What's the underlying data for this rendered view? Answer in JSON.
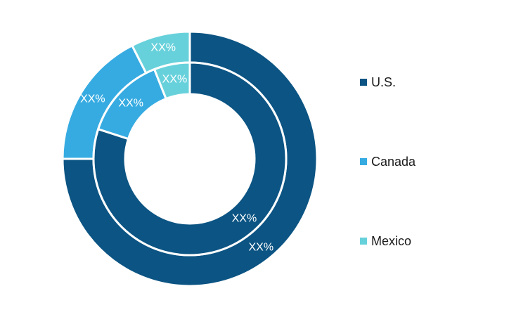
{
  "chart_data": {
    "type": "pie",
    "variant": "nested-donut",
    "categories": [
      "U.S.",
      "Canada",
      "Mexico"
    ],
    "colors": [
      "#0b5483",
      "#36abe1",
      "#67d1db"
    ],
    "series": [
      {
        "ring": "outer",
        "values": [
          75,
          17.5,
          7.5
        ],
        "labels": [
          "XX%",
          "XX%",
          "XX%"
        ]
      },
      {
        "ring": "inner",
        "values": [
          80,
          14,
          6
        ],
        "labels": [
          "XX%",
          "XX%",
          "XX%"
        ]
      }
    ],
    "legend": {
      "position": "right",
      "items": [
        "U.S.",
        "Canada",
        "Mexico"
      ]
    }
  }
}
